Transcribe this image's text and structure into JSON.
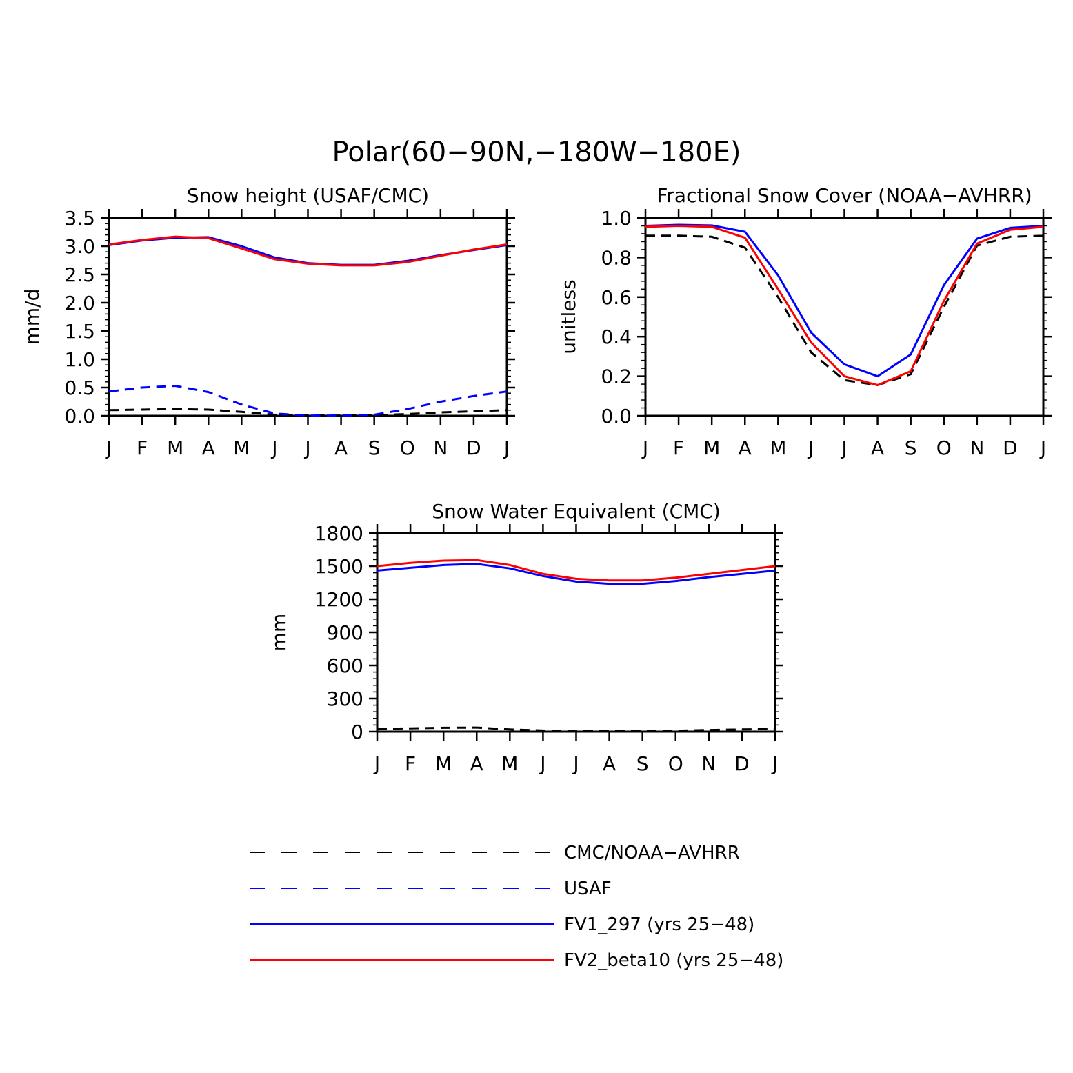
{
  "figure": {
    "title": "Polar(60−90N,−180W−180E)"
  },
  "colors": {
    "obs": "#000000",
    "usaf": "#0000ff",
    "fv1": "#0000ff",
    "fv2": "#ff0000"
  },
  "chart_data": [
    {
      "type": "line",
      "title": "Snow height (USAF/CMC)",
      "xlabel": "",
      "ylabel": "mm/d",
      "categories": [
        "J",
        "F",
        "M",
        "A",
        "M",
        "J",
        "J",
        "A",
        "S",
        "O",
        "N",
        "D",
        "J"
      ],
      "ylim": [
        0,
        3.5
      ],
      "yticks": [
        0.0,
        0.5,
        1.0,
        1.5,
        2.0,
        2.5,
        3.0,
        3.5
      ],
      "ytick_labels": [
        "0.0",
        "0.5",
        "1.0",
        "1.5",
        "2.0",
        "2.5",
        "3.0",
        "3.5"
      ],
      "series": [
        {
          "name": "CMC/NOAA-AVHRR",
          "style": "dashed",
          "color_key": "obs",
          "values": [
            0.1,
            0.11,
            0.12,
            0.11,
            0.07,
            0.02,
            0.01,
            0.005,
            0.01,
            0.03,
            0.06,
            0.08,
            0.1
          ]
        },
        {
          "name": "USAF",
          "style": "dashed",
          "color_key": "usaf",
          "values": [
            0.43,
            0.5,
            0.53,
            0.42,
            0.2,
            0.04,
            0.005,
            0.005,
            0.02,
            0.12,
            0.25,
            0.35,
            0.43
          ]
        },
        {
          "name": "FV1_297 (yrs 25-48)",
          "style": "solid",
          "color_key": "fv1",
          "values": [
            3.02,
            3.1,
            3.15,
            3.16,
            3.0,
            2.8,
            2.7,
            2.67,
            2.67,
            2.74,
            2.84,
            2.93,
            3.02
          ]
        },
        {
          "name": "FV2_beta10 (yrs 25-48)",
          "style": "solid",
          "color_key": "fv2",
          "values": [
            3.03,
            3.11,
            3.17,
            3.14,
            2.96,
            2.77,
            2.69,
            2.66,
            2.66,
            2.72,
            2.83,
            2.94,
            3.03
          ]
        }
      ]
    },
    {
      "type": "line",
      "title": "Fractional Snow Cover (NOAA−AVHRR)",
      "xlabel": "",
      "ylabel": "unitless",
      "categories": [
        "J",
        "F",
        "M",
        "A",
        "M",
        "J",
        "J",
        "A",
        "S",
        "O",
        "N",
        "D",
        "J"
      ],
      "ylim": [
        0,
        1.0
      ],
      "yticks": [
        0.0,
        0.2,
        0.4,
        0.6,
        0.8,
        1.0
      ],
      "ytick_labels": [
        "0.0",
        "0.2",
        "0.4",
        "0.6",
        "0.8",
        "1.0"
      ],
      "series": [
        {
          "name": "CMC/NOAA-AVHRR",
          "style": "dashed",
          "color_key": "obs",
          "values": [
            0.91,
            0.91,
            0.905,
            0.85,
            0.6,
            0.32,
            0.18,
            0.155,
            0.21,
            0.55,
            0.86,
            0.905,
            0.91
          ]
        },
        {
          "name": "FV1_297 (yrs 25-48)",
          "style": "solid",
          "color_key": "fv1",
          "values": [
            0.96,
            0.965,
            0.962,
            0.93,
            0.71,
            0.42,
            0.26,
            0.2,
            0.31,
            0.66,
            0.895,
            0.95,
            0.96
          ]
        },
        {
          "name": "FV2_beta10 (yrs 25-48)",
          "style": "solid",
          "color_key": "fv2",
          "values": [
            0.955,
            0.96,
            0.955,
            0.9,
            0.64,
            0.37,
            0.2,
            0.155,
            0.225,
            0.58,
            0.87,
            0.94,
            0.955
          ]
        }
      ]
    },
    {
      "type": "line",
      "title": "Snow Water Equivalent (CMC)",
      "xlabel": "",
      "ylabel": "mm",
      "categories": [
        "J",
        "F",
        "M",
        "A",
        "M",
        "J",
        "J",
        "A",
        "S",
        "O",
        "N",
        "D",
        "J"
      ],
      "ylim": [
        0,
        1800
      ],
      "yticks": [
        0,
        300,
        600,
        900,
        1200,
        1500,
        1800
      ],
      "ytick_labels": [
        "0",
        "300",
        "600",
        "900",
        "1200",
        "1500",
        "1800"
      ],
      "series": [
        {
          "name": "CMC/NOAA-AVHRR",
          "style": "dashed",
          "color_key": "obs",
          "values": [
            25,
            30,
            35,
            37,
            20,
            10,
            5,
            3,
            3,
            8,
            15,
            20,
            25
          ]
        },
        {
          "name": "FV1_297 (yrs 25-48)",
          "style": "solid",
          "color_key": "fv1",
          "values": [
            1460,
            1485,
            1510,
            1520,
            1480,
            1410,
            1360,
            1340,
            1340,
            1365,
            1400,
            1430,
            1460
          ]
        },
        {
          "name": "FV2_beta10 (yrs 25-48)",
          "style": "solid",
          "color_key": "fv2",
          "values": [
            1500,
            1530,
            1550,
            1555,
            1510,
            1430,
            1385,
            1370,
            1370,
            1395,
            1430,
            1465,
            1500
          ]
        }
      ]
    }
  ],
  "legend": [
    {
      "label": "CMC/NOAA−AVHRR",
      "style": "dashed",
      "color_key": "obs"
    },
    {
      "label": "USAF",
      "style": "dashed",
      "color_key": "usaf"
    },
    {
      "label": "FV1_297 (yrs 25−48)",
      "style": "solid",
      "color_key": "fv1"
    },
    {
      "label": "FV2_beta10 (yrs 25−48)",
      "style": "solid",
      "color_key": "fv2"
    }
  ]
}
